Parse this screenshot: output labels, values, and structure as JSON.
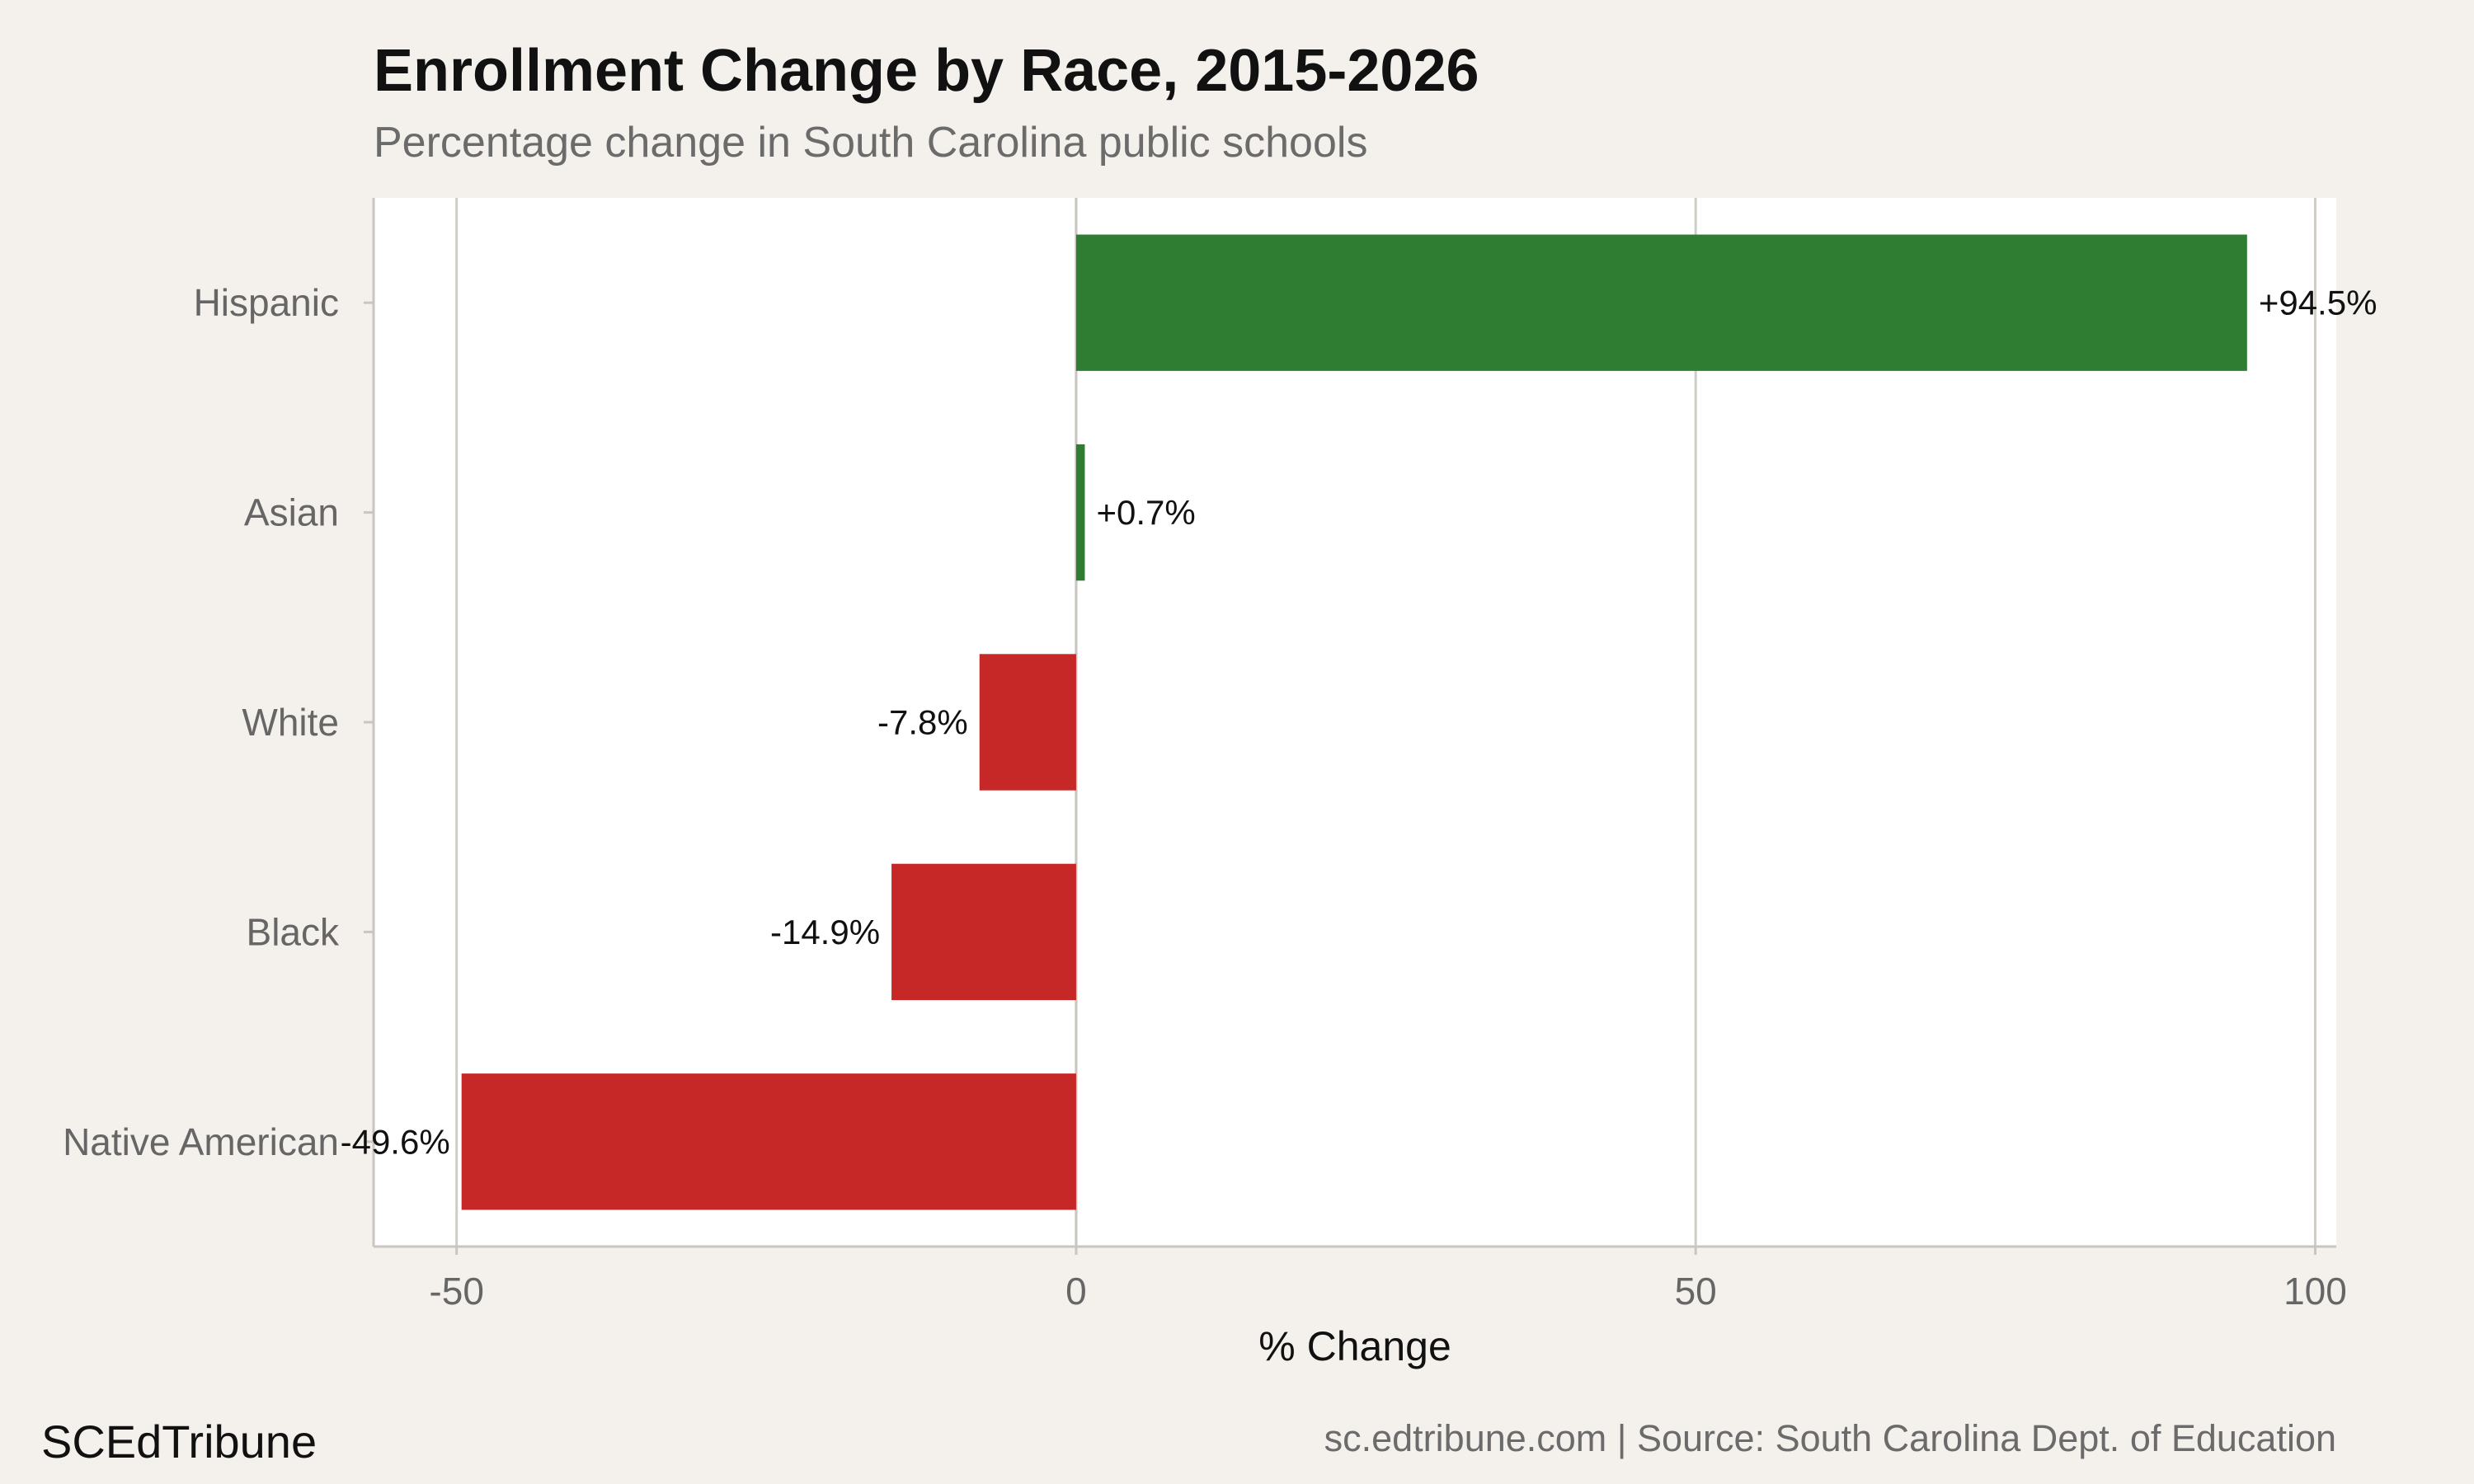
{
  "chart_data": {
    "type": "bar",
    "orientation": "horizontal",
    "title": "Enrollment Change by Race, 2015-2026",
    "subtitle": "Percentage change in South Carolina public schools",
    "xlabel": "% Change",
    "ylabel": "",
    "categories": [
      "Hispanic",
      "Asian",
      "White",
      "Black",
      "Native American"
    ],
    "values": [
      94.5,
      0.7,
      -7.8,
      -14.9,
      -49.6
    ],
    "data_labels": [
      "+94.5%",
      "+0.7%",
      "-7.8%",
      "-14.9%",
      "-49.6%"
    ],
    "x_ticks": [
      -50,
      0,
      50,
      100
    ],
    "x_tick_labels": [
      "-50",
      "0",
      "50",
      "100"
    ],
    "xlim": [
      -56.7,
      101.7
    ],
    "grid": "vertical",
    "colors": {
      "positive": "#2e7d32",
      "negative": "#c62828",
      "plot_bg": "#ffffff",
      "page_bg": "#f4f1ec",
      "grid": "#d0cdc6"
    }
  },
  "footer": {
    "brand": "SCEdTribune",
    "source": "sc.edtribune.com | Source: South Carolina Dept. of Education"
  }
}
